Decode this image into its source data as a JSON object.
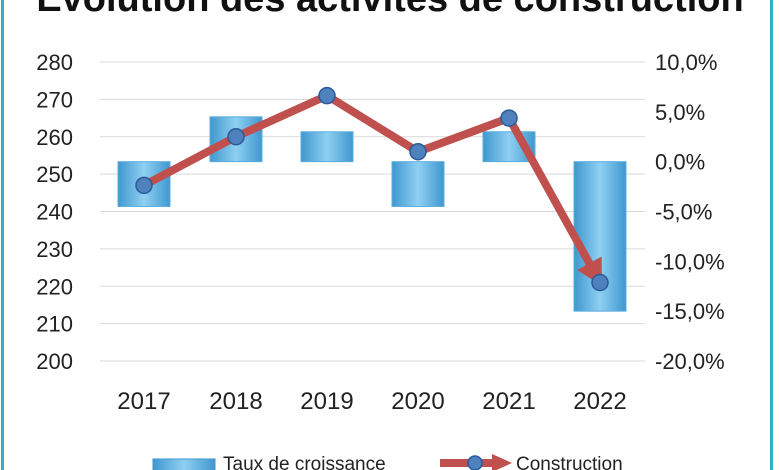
{
  "chart_data": {
    "type": "bar",
    "title": "Evolution des activités de construction",
    "categories": [
      "2017",
      "2018",
      "2019",
      "2020",
      "2021",
      "2022"
    ],
    "series": [
      {
        "name": "Taux de croissance",
        "type": "bar",
        "axis": "right",
        "values": [
          -4.5,
          4.5,
          3.0,
          -4.5,
          3.0,
          -15.0
        ]
      },
      {
        "name": "Construction",
        "type": "line",
        "axis": "left",
        "values": [
          247,
          260,
          271,
          256,
          265,
          221
        ]
      }
    ],
    "y_left": {
      "ticks": [
        "280",
        "270",
        "260",
        "250",
        "240",
        "230",
        "220",
        "210",
        "200"
      ],
      "ylim": [
        200,
        280
      ]
    },
    "y_right": {
      "ticks": [
        "10,0%",
        "5,0%",
        "0,0%",
        "-5,0%",
        "-10,0%",
        "-15,0%",
        "-20,0%"
      ],
      "ylim": [
        -20,
        10
      ]
    },
    "grid": true,
    "legend": "bottom",
    "colors": {
      "bar": "#4aa6dc",
      "bar_light": "#8fd0f2",
      "line": "#c0504d",
      "marker": "#4f81bd",
      "frame": "#2fb2c4"
    }
  }
}
